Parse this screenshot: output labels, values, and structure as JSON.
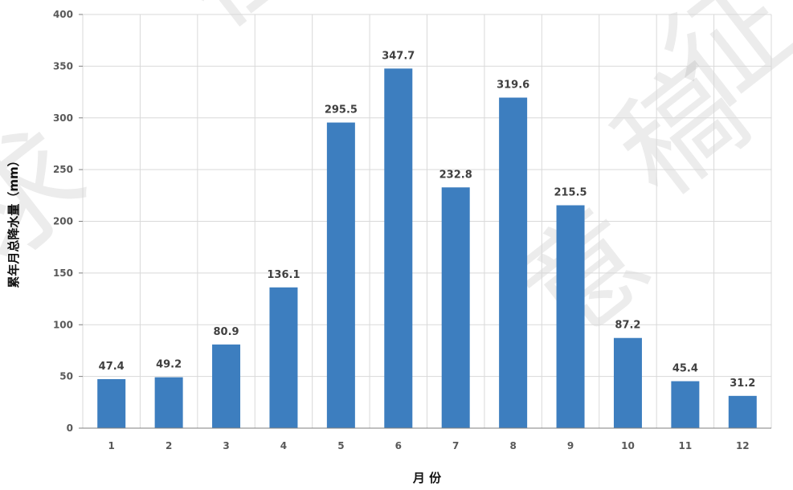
{
  "chart_data": {
    "type": "bar",
    "title": "",
    "xlabel": "月 份",
    "ylabel": "累年月总降水量（mm）",
    "categories": [
      "1",
      "2",
      "3",
      "4",
      "5",
      "6",
      "7",
      "8",
      "9",
      "10",
      "11",
      "12"
    ],
    "values": [
      47.4,
      49.2,
      80.9,
      136.1,
      295.5,
      347.7,
      232.8,
      319.6,
      215.5,
      87.2,
      45.4,
      31.2
    ],
    "data_labels": [
      "47.4",
      "49.2",
      "80.9",
      "136.1",
      "295.5",
      "347.7",
      "232.8",
      "319.6",
      "215.5",
      "87.2",
      "45.4",
      "31.2"
    ],
    "ylim": [
      0,
      400
    ],
    "yticks": [
      "0",
      "50",
      "100",
      "150",
      "200",
      "250",
      "300",
      "350",
      "400"
    ],
    "grid": true,
    "legend": "none",
    "colors": {
      "bar": "#3d7ebf",
      "grid": "#d9d9d9",
      "axis": "#7f7f7f"
    }
  },
  "watermark": {
    "chars": [
      "征",
      "求",
      "意",
      "稿",
      "征"
    ]
  }
}
